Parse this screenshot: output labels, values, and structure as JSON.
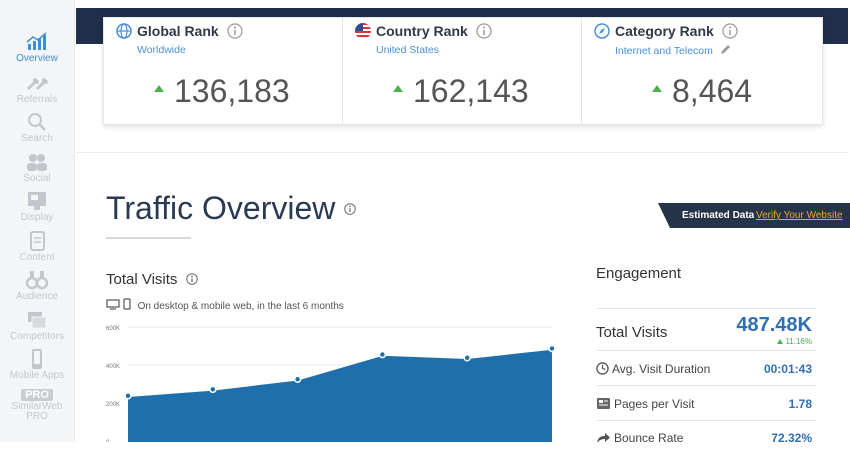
{
  "sidebar": {
    "items": [
      {
        "label": "Overview",
        "icon": "chart-bars-icon",
        "active": true
      },
      {
        "label": "Referrals",
        "icon": "arrows-icon"
      },
      {
        "label": "Search",
        "icon": "search-icon"
      },
      {
        "label": "Social",
        "icon": "people-icon"
      },
      {
        "label": "Display",
        "icon": "display-ad-icon"
      },
      {
        "label": "Content",
        "icon": "document-icon"
      },
      {
        "label": "Audience",
        "icon": "binoculars-icon"
      },
      {
        "label": "Competitors",
        "icon": "stack-icon"
      },
      {
        "label": "Mobile Apps",
        "icon": "phone-icon"
      }
    ],
    "pro": {
      "badge": "PRO",
      "label_line1": "SimilarWeb",
      "label_line2": "PRO"
    }
  },
  "ranks": [
    {
      "title": "Global Rank",
      "subtitle": "Worldwide",
      "value": "136,183",
      "icon": "globe-icon"
    },
    {
      "title": "Country Rank",
      "subtitle": "United States",
      "value": "162,143",
      "icon": "us-flag-icon"
    },
    {
      "title": "Category Rank",
      "subtitle": "Internet and Telecom",
      "value": "8,464",
      "icon": "compass-icon"
    }
  ],
  "traffic": {
    "title": "Traffic Overview",
    "estimated_label": "Estimated Data",
    "verify_link": "Verify Your Website",
    "total_visits_label": "Total Visits",
    "subtitle": "On desktop & mobile web, in the last 6 months"
  },
  "chart_data": {
    "type": "area",
    "y_ticks": [
      "600K",
      "400K",
      "200K",
      "0"
    ],
    "ylim": [
      0,
      600000
    ],
    "values": [
      238000,
      272000,
      325000,
      455000,
      438000,
      487000
    ],
    "color": "#1f6fad"
  },
  "engagement": {
    "title": "Engagement",
    "total_visits_label": "Total Visits",
    "total_visits_value": "487.48K",
    "total_visits_delta": "11.16%",
    "metrics": [
      {
        "label": "Avg. Visit Duration",
        "value": "00:01:43",
        "icon": "clock-icon"
      },
      {
        "label": "Pages per Visit",
        "value": "1.78",
        "icon": "pages-icon"
      },
      {
        "label": "Bounce Rate",
        "value": "72.32%",
        "icon": "bounce-arrow-icon"
      }
    ]
  }
}
